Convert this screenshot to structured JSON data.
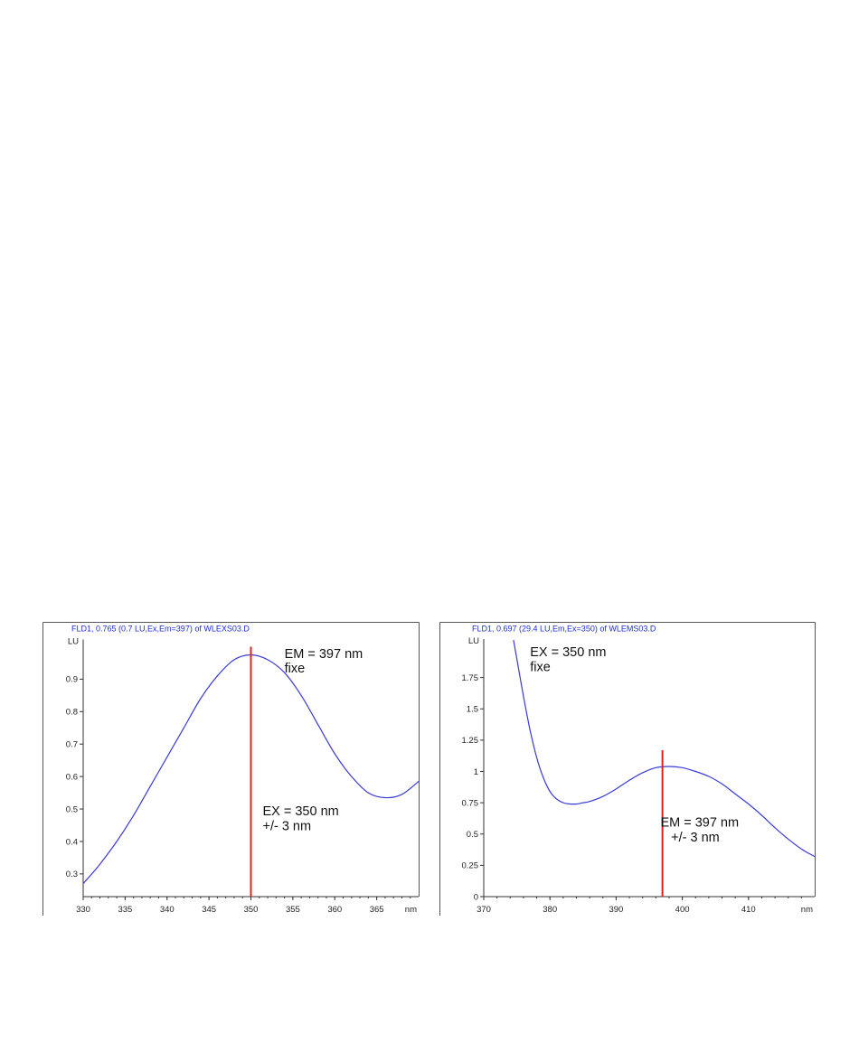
{
  "chart_data": [
    {
      "type": "line",
      "title": "FLD1, 0.765 (0.7 LU,Ex,Em=397) of WLEXS03.D",
      "ylabel": "LU",
      "xunit": "nm",
      "xlim": [
        330,
        370
      ],
      "ylim": [
        0.23,
        1.0
      ],
      "xticks": [
        "330",
        "335",
        "340",
        "345",
        "350",
        "355",
        "360",
        "365"
      ],
      "yticks": [
        "0.3",
        "0.4",
        "0.5",
        "0.6",
        "0.7",
        "0.8",
        "0.9"
      ],
      "line_color": "#3a3ad8",
      "marker_color": "#e02020",
      "x": [
        330,
        332,
        334,
        336,
        338,
        340,
        342,
        344,
        346,
        348,
        350,
        352,
        354,
        356,
        358,
        360,
        362,
        364,
        366,
        368,
        370
      ],
      "y": [
        0.27,
        0.33,
        0.4,
        0.48,
        0.57,
        0.66,
        0.75,
        0.84,
        0.91,
        0.96,
        0.975,
        0.96,
        0.92,
        0.85,
        0.76,
        0.67,
        0.6,
        0.55,
        0.535,
        0.545,
        0.585
      ],
      "marker": {
        "x": 350,
        "y_top": 1.0
      },
      "annotations": [
        {
          "text": "EM = 397 nm",
          "x": 354,
          "y": 0.965
        },
        {
          "text": "fixe",
          "x": 354,
          "y": 0.92
        },
        {
          "text": "EX = 350 nm",
          "x": 351.4,
          "y": 0.48
        },
        {
          "text": "+/- 3 nm",
          "x": 351.4,
          "y": 0.435
        }
      ]
    },
    {
      "type": "line",
      "title": "FLD1, 0.697 (29.4 LU,Em,Ex=350) of WLEMS03.D",
      "ylabel": "LU",
      "xunit": "nm",
      "xlim": [
        370,
        420
      ],
      "ylim": [
        0,
        2.0
      ],
      "xticks": [
        "370",
        "380",
        "390",
        "400",
        "410"
      ],
      "yticks": [
        "0",
        "0.25",
        "0.5",
        "0.75",
        "1",
        "1.25",
        "1.5",
        "1.75"
      ],
      "line_color": "#3a3ad8",
      "marker_color": "#e02020",
      "x": [
        374.5,
        375,
        376,
        377,
        378,
        379,
        380,
        381,
        382,
        383,
        384,
        385,
        386,
        388,
        390,
        392,
        394,
        396,
        398,
        400,
        402,
        404,
        406,
        408,
        410,
        412,
        414,
        416,
        418,
        420
      ],
      "y": [
        2.05,
        1.9,
        1.6,
        1.33,
        1.11,
        0.95,
        0.84,
        0.78,
        0.75,
        0.74,
        0.74,
        0.75,
        0.76,
        0.8,
        0.86,
        0.93,
        0.99,
        1.03,
        1.04,
        1.03,
        1.0,
        0.96,
        0.9,
        0.82,
        0.74,
        0.65,
        0.55,
        0.46,
        0.38,
        0.32
      ],
      "marker": {
        "x": 397,
        "y_top": 1.17
      },
      "annotations": [
        {
          "text": "EX = 350 nm",
          "x": 377,
          "y": 1.92
        },
        {
          "text": "fixe",
          "x": 377,
          "y": 1.8
        },
        {
          "text": "EM = 397 nm",
          "x": 396.7,
          "y": 0.56
        },
        {
          "text": "+/- 3 nm",
          "x": 398.3,
          "y": 0.44
        }
      ]
    }
  ]
}
